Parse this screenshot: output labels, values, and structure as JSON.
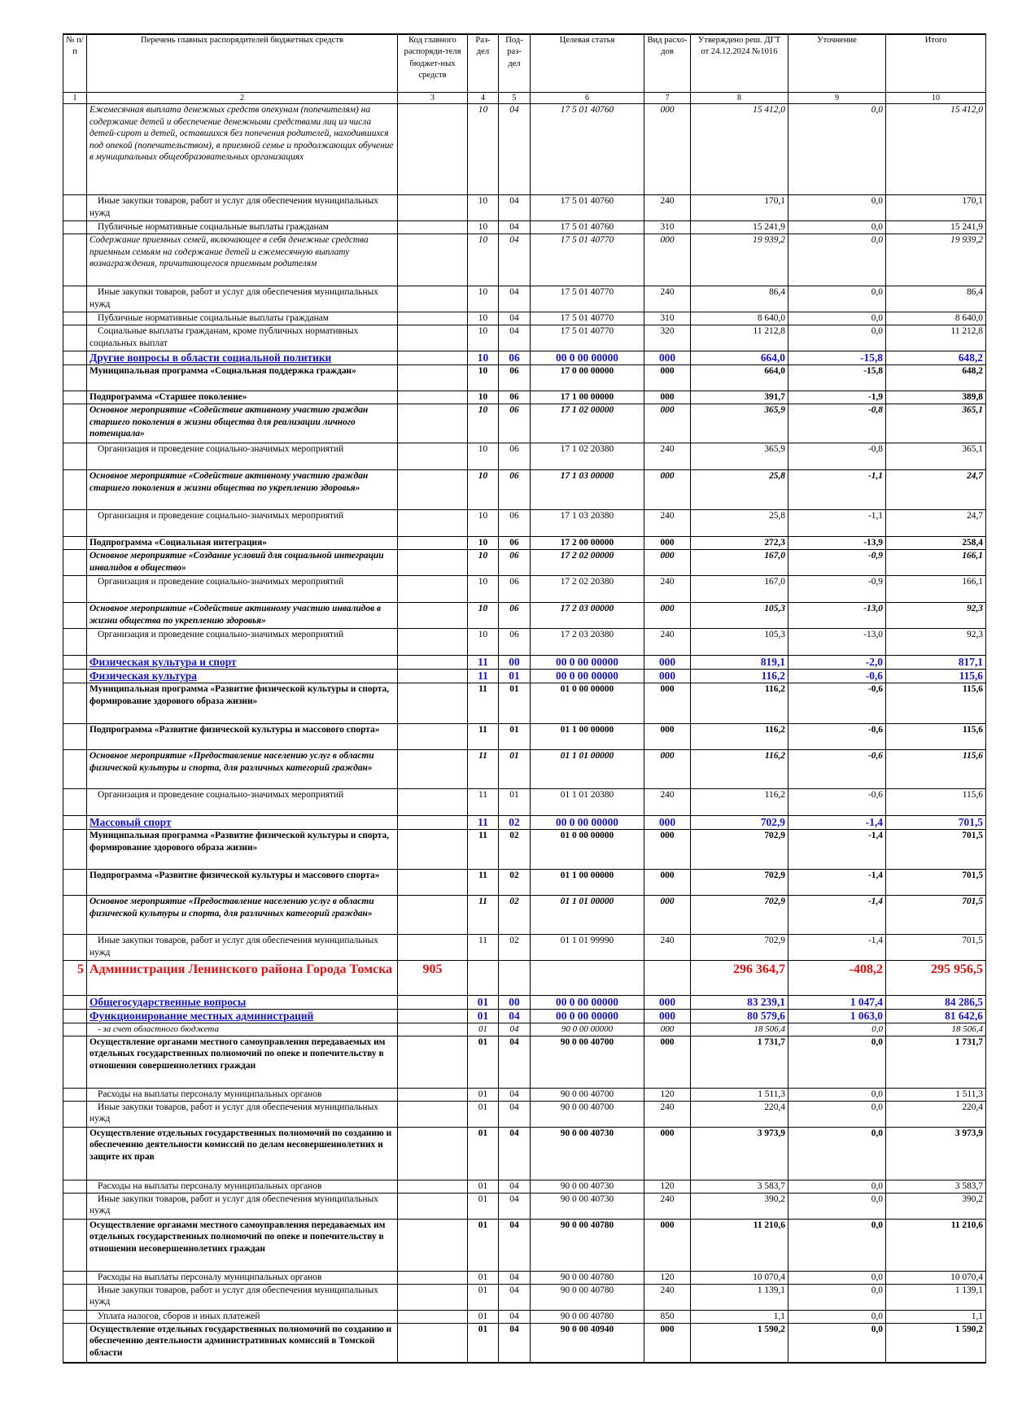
{
  "header": {
    "col1": "№ п/п",
    "col2": "Перечень главных распорядителей бюджетных средств",
    "col3": "Код главного распоряди-теля бюджет-ных средств",
    "col4": "Раз-дел",
    "col5": "Под-раз-дел",
    "col6": "Целевая статья",
    "col7": "Вид расхо-дов",
    "col8": "Утверждено реш. ДГТ от 24.12.2024 №1016",
    "col9": "Уточнение",
    "col10": "Итого",
    "nums": [
      "1",
      "2",
      "3",
      "4",
      "5",
      "6",
      "7",
      "8",
      "9",
      "10"
    ]
  },
  "rows": [
    {
      "style": "it",
      "h": 112,
      "name": "Ежемесячная выплата денежных средств опекунам (попечителям) на содержание детей и обеспечение денежными средствами лиц из числа детей-сирот и детей, оставшихся без попечения родителей, находившихся под опекой (попечительством), в приемной семье и продолжающих обучение в муниципальных общеобразовательных организациях",
      "rz": "10",
      "prz": "04",
      "cs": "17 5 01 40760",
      "vr": "000",
      "approved": "15 412,0",
      "change": "0,0",
      "total": "15 412,0"
    },
    {
      "style": "n",
      "h": 32,
      "name": "Иные закупки товаров, работ и услуг для обеспечения муниципальных нужд",
      "rz": "10",
      "prz": "04",
      "cs": "17 5 01 40760",
      "vr": "240",
      "approved": "170,1",
      "change": "0,0",
      "total": "170,1"
    },
    {
      "style": "n",
      "h": 16,
      "name": "Публичные нормативные социальные выплаты гражданам",
      "rz": "10",
      "prz": "04",
      "cs": "17 5 01 40760",
      "vr": "310",
      "approved": "15 241,9",
      "change": "0,0",
      "total": "15 241,9"
    },
    {
      "style": "it",
      "h": 64,
      "name": "Содержание приемных семей, включающее в себя денежные средства приемным семьям на содержание детей и ежемесячную выплату вознаграждения, причитающегося приемным родителям",
      "rz": "10",
      "prz": "04",
      "cs": "17 5 01 40770",
      "vr": "000",
      "approved": "19 939,2",
      "change": "0,0",
      "total": "19 939,2"
    },
    {
      "style": "n",
      "h": 32,
      "name": "Иные закупки товаров, работ и услуг для обеспечения муниципальных нужд",
      "rz": "10",
      "prz": "04",
      "cs": "17 5 01 40770",
      "vr": "240",
      "approved": "86,4",
      "change": "0,0",
      "total": "86,4"
    },
    {
      "style": "n",
      "h": 16,
      "name": "Публичные нормативные социальные выплаты гражданам",
      "rz": "10",
      "prz": "04",
      "cs": "17 5 01 40770",
      "vr": "310",
      "approved": "8 640,0",
      "change": "0,0",
      "total": "8 640,0"
    },
    {
      "style": "n",
      "h": 32,
      "name": "Социальные выплаты гражданам, кроме публичных нормативных социальных выплат",
      "rz": "10",
      "prz": "04",
      "cs": "17 5 01 40770",
      "vr": "320",
      "approved": "11 212,8",
      "change": "0,0",
      "total": "11 212,8"
    },
    {
      "style": "blue",
      "h": 16,
      "name": "Другие вопросы в области социальной политики",
      "rz": "10",
      "prz": "06",
      "cs": "00 0 00 00000",
      "vr": "000",
      "approved": "664,0",
      "change": "-15,8",
      "total": "648,2"
    },
    {
      "style": "b",
      "h": 32,
      "name": "Муниципальная программа «Социальная поддержка граждан»",
      "rz": "10",
      "prz": "06",
      "cs": "17 0 00 00000",
      "vr": "000",
      "approved": "664,0",
      "change": "-15,8",
      "total": "648,2"
    },
    {
      "style": "b",
      "h": 16,
      "name": "Подпрограмма «Старшее поколение»",
      "rz": "10",
      "prz": "06",
      "cs": "17 1 00 00000",
      "vr": "000",
      "approved": "391,7",
      "change": "-1,9",
      "total": "389,8"
    },
    {
      "style": "bi",
      "h": 48,
      "name": "Основное мероприятие «Содействие активному участию граждан старшего поколения в жизни общества для реализации личного потенциала»",
      "rz": "10",
      "prz": "06",
      "cs": "17 1 02 00000",
      "vr": "000",
      "approved": "365,9",
      "change": "-0,8",
      "total": "365,1"
    },
    {
      "style": "n",
      "h": 33,
      "name": "Организация и проведение социально-значимых мероприятий",
      "rz": "10",
      "prz": "06",
      "cs": "17 1 02 20380",
      "vr": "240",
      "approved": "365,9",
      "change": "-0,8",
      "total": "365,1"
    },
    {
      "style": "bi",
      "h": 49,
      "name": "Основное мероприятие «Содействие активному участию граждан старшего поколения в жизни общества по укреплению здоровья»",
      "rz": "10",
      "prz": "06",
      "cs": "17 1 03 00000",
      "vr": "000",
      "approved": "25,8",
      "change": "-1,1",
      "total": "24,7"
    },
    {
      "style": "n",
      "h": 33,
      "name": "Организация и проведение социально-значимых мероприятий",
      "rz": "10",
      "prz": "06",
      "cs": "17 1 03 20380",
      "vr": "240",
      "approved": "25,8",
      "change": "-1,1",
      "total": "24,7"
    },
    {
      "style": "b",
      "h": 16,
      "name": "Подпрограмма «Социальная интеграция»",
      "rz": "10",
      "prz": "06",
      "cs": "17 2 00 00000",
      "vr": "000",
      "approved": "272,3",
      "change": "-13,9",
      "total": "258,4"
    },
    {
      "style": "bi",
      "h": 32,
      "name": "Основное мероприятие «Создание условий для социальной интеграции инвалидов в общество»",
      "rz": "10",
      "prz": "06",
      "cs": "17 2 02 00000",
      "vr": "000",
      "approved": "167,0",
      "change": "-0,9",
      "total": "166,1"
    },
    {
      "style": "n",
      "h": 33,
      "name": "Организация и проведение социально-значимых мероприятий",
      "rz": "10",
      "prz": "06",
      "cs": "17 2 02 20380",
      "vr": "240",
      "approved": "167,0",
      "change": "-0,9",
      "total": "166,1"
    },
    {
      "style": "bi",
      "h": 32,
      "name": "Основное мероприятие «Содействие активному участию инвалидов в жизни общества по укреплению здоровья»",
      "rz": "10",
      "prz": "06",
      "cs": "17 2 03 00000",
      "vr": "000",
      "approved": "105,3",
      "change": "-13,0",
      "total": "92,3"
    },
    {
      "style": "n",
      "h": 33,
      "name": "Организация и проведение социально-значимых мероприятий",
      "rz": "10",
      "prz": "06",
      "cs": "17 2 03 20380",
      "vr": "240",
      "approved": "105,3",
      "change": "-13,0",
      "total": "92,3"
    },
    {
      "style": "blue",
      "h": 17,
      "name": "Физическая культура и спорт",
      "rz": "11",
      "prz": "00",
      "cs": "00 0 00 00000",
      "vr": "000",
      "approved": "819,1",
      "change": "-2,0",
      "total": "817,1"
    },
    {
      "style": "blue",
      "h": 16,
      "name": "Физическая культура",
      "rz": "11",
      "prz": "01",
      "cs": "00 0 00 00000",
      "vr": "000",
      "approved": "116,2",
      "change": "-0,6",
      "total": "115,6"
    },
    {
      "style": "b",
      "h": 50,
      "name": "Муниципальная программа «Развитие физической культуры и спорта, формирование здорового образа жизни»",
      "rz": "11",
      "prz": "01",
      "cs": "01 0 00 00000",
      "vr": "000",
      "approved": "116,2",
      "change": "-0,6",
      "total": "115,6"
    },
    {
      "style": "b",
      "h": 32,
      "name": "Подпрограмма «Развитие физической культуры и массового спорта»",
      "rz": "11",
      "prz": "01",
      "cs": "01 1 00 00000",
      "vr": "000",
      "approved": "116,2",
      "change": "-0,6",
      "total": "115,6"
    },
    {
      "style": "bi",
      "h": 48,
      "name": "Основное мероприятие «Предоставление населению услуг в области физической культуры и спорта, для различных категорий граждан»",
      "rz": "11",
      "prz": "01",
      "cs": "01 1 01 00000",
      "vr": "000",
      "approved": "116,2",
      "change": "-0,6",
      "total": "115,6"
    },
    {
      "style": "n",
      "h": 33,
      "name": "Организация и проведение социально-значимых мероприятий",
      "rz": "11",
      "prz": "01",
      "cs": "01 1 01 20380",
      "vr": "240",
      "approved": "116,2",
      "change": "-0,6",
      "total": "115,6"
    },
    {
      "style": "blue",
      "h": 17,
      "name": "Массовый спорт",
      "rz": "11",
      "prz": "02",
      "cs": "00 0 00 00000",
      "vr": "000",
      "approved": "702,9",
      "change": "-1,4",
      "total": "701,5"
    },
    {
      "style": "b",
      "h": 49,
      "name": "Муниципальная программа «Развитие физической культуры и спорта, формирование здорового образа жизни»",
      "rz": "11",
      "prz": "02",
      "cs": "01 0 00 00000",
      "vr": "000",
      "approved": "702,9",
      "change": "-1,4",
      "total": "701,5"
    },
    {
      "style": "b",
      "h": 32,
      "name": "Подпрограмма «Развитие физической культуры и массового спорта»",
      "rz": "11",
      "prz": "02",
      "cs": "01 1 00 00000",
      "vr": "000",
      "approved": "702,9",
      "change": "-1,4",
      "total": "701,5"
    },
    {
      "style": "bi",
      "h": 48,
      "name": "Основное мероприятие «Предоставление населению услуг в области физической культуры и спорта, для различных категорий граждан»",
      "rz": "11",
      "prz": "02",
      "cs": "01 1 01 00000",
      "vr": "000",
      "approved": "702,9",
      "change": "-1,4",
      "total": "701,5"
    },
    {
      "style": "n",
      "h": 32,
      "name": "Иные закупки товаров, работ и услуг для обеспечения муниципальных нужд",
      "rz": "11",
      "prz": "02",
      "cs": "01 1 01 99990",
      "vr": "240",
      "approved": "702,9",
      "change": "-1,4",
      "total": "701,5"
    },
    {
      "style": "red",
      "h": 43,
      "num": "5",
      "name": "Администрация Ленинского района Города Томска",
      "code": "905",
      "rz": "",
      "prz": "",
      "cs": "",
      "vr": "",
      "approved": "296 364,7",
      "change": "-408,2",
      "total": "295 956,5"
    },
    {
      "style": "blue",
      "h": 17,
      "name": "Общегосударственные вопросы",
      "rz": "01",
      "prz": "00",
      "cs": "00 0 00 00000",
      "vr": "000",
      "approved": "83 239,1",
      "change": "1 047,4",
      "total": "84 286,5"
    },
    {
      "style": "blue",
      "h": 16,
      "name": "Функционирование местных администраций",
      "rz": "01",
      "prz": "04",
      "cs": "00 0 00 00000",
      "vr": "000",
      "approved": "80 579,6",
      "change": "1 063,0",
      "total": "81 642,6"
    },
    {
      "style": "small",
      "h": 15,
      "name": "- за счет областного бюджета",
      "rz": "01",
      "prz": "04",
      "cs": "90 0 00 00000",
      "vr": "000",
      "approved": "18 506,4",
      "change": "0,0",
      "total": "18 506,4"
    },
    {
      "style": "b",
      "h": 64,
      "name": "Осуществление органами местного самоуправления передаваемых им отдельных государственных полномочий по опеке и попечительству в отношении совершеннолетних граждан",
      "rz": "01",
      "prz": "04",
      "cs": "90 0 00 40700",
      "vr": "000",
      "approved": "1 731,7",
      "change": "0,0",
      "total": "1 731,7"
    },
    {
      "style": "n",
      "h": 16,
      "name": "Расходы на выплаты персоналу муниципальных органов",
      "rz": "01",
      "prz": "04",
      "cs": "90 0 00 40700",
      "vr": "120",
      "approved": "1 511,3",
      "change": "0,0",
      "total": "1 511,3"
    },
    {
      "style": "n",
      "h": 32,
      "name": "Иные закупки товаров, работ и услуг для обеспечения муниципальных нужд",
      "rz": "01",
      "prz": "04",
      "cs": "90 0 00 40700",
      "vr": "240",
      "approved": "220,4",
      "change": "0,0",
      "total": "220,4"
    },
    {
      "style": "b",
      "h": 65,
      "name": "Осуществление отдельных государственных полномочий по созданию и обеспечению деятельности комиссий по делам несовершеннолетних и защите их прав",
      "rz": "01",
      "prz": "04",
      "cs": "90 0 00 40730",
      "vr": "000",
      "approved": "3 973,9",
      "change": "0,0",
      "total": "3 973,9"
    },
    {
      "style": "n",
      "h": 16,
      "name": "Расходы на выплаты персоналу муниципальных органов",
      "rz": "01",
      "prz": "04",
      "cs": "90 0 00 40730",
      "vr": "120",
      "approved": "3 583,7",
      "change": "0,0",
      "total": "3 583,7"
    },
    {
      "style": "n",
      "h": 32,
      "name": "Иные закупки товаров, работ и услуг для обеспечения муниципальных нужд",
      "rz": "01",
      "prz": "04",
      "cs": "90 0 00 40730",
      "vr": "240",
      "approved": "390,2",
      "change": "0,0",
      "total": "390,2"
    },
    {
      "style": "b",
      "h": 64,
      "name": "Осуществление органами местного самоуправления передаваемых им отдельных государственных полномочий по опеке и попечительству в отношении несовершеннолетних граждан",
      "rz": "01",
      "prz": "04",
      "cs": "90 0 00 40780",
      "vr": "000",
      "approved": "11 210,6",
      "change": "0,0",
      "total": "11 210,6"
    },
    {
      "style": "n",
      "h": 16,
      "name": "Расходы на выплаты персоналу муниципальных органов",
      "rz": "01",
      "prz": "04",
      "cs": "90 0 00 40780",
      "vr": "120",
      "approved": "10 070,4",
      "change": "0,0",
      "total": "10 070,4"
    },
    {
      "style": "n",
      "h": 32,
      "name": "Иные закупки товаров, работ и услуг для обеспечения муниципальных нужд",
      "rz": "01",
      "prz": "04",
      "cs": "90 0 00 40780",
      "vr": "240",
      "approved": "1 139,1",
      "change": "0,0",
      "total": "1 139,1"
    },
    {
      "style": "n",
      "h": 16,
      "name": "Уплата налогов, сборов и иных платежей",
      "rz": "01",
      "prz": "04",
      "cs": "90 0 00 40780",
      "vr": "850",
      "approved": "1,1",
      "change": "0,0",
      "total": "1,1"
    },
    {
      "style": "b",
      "h": 49,
      "name": "Осуществление отдельных государственных полномочий по созданию и обеспечению деятельности административных комиссий в Томской области",
      "rz": "01",
      "prz": "04",
      "cs": "90 0 00 40940",
      "vr": "000",
      "approved": "1 590,2",
      "change": "0,0",
      "total": "1 590,2"
    }
  ]
}
